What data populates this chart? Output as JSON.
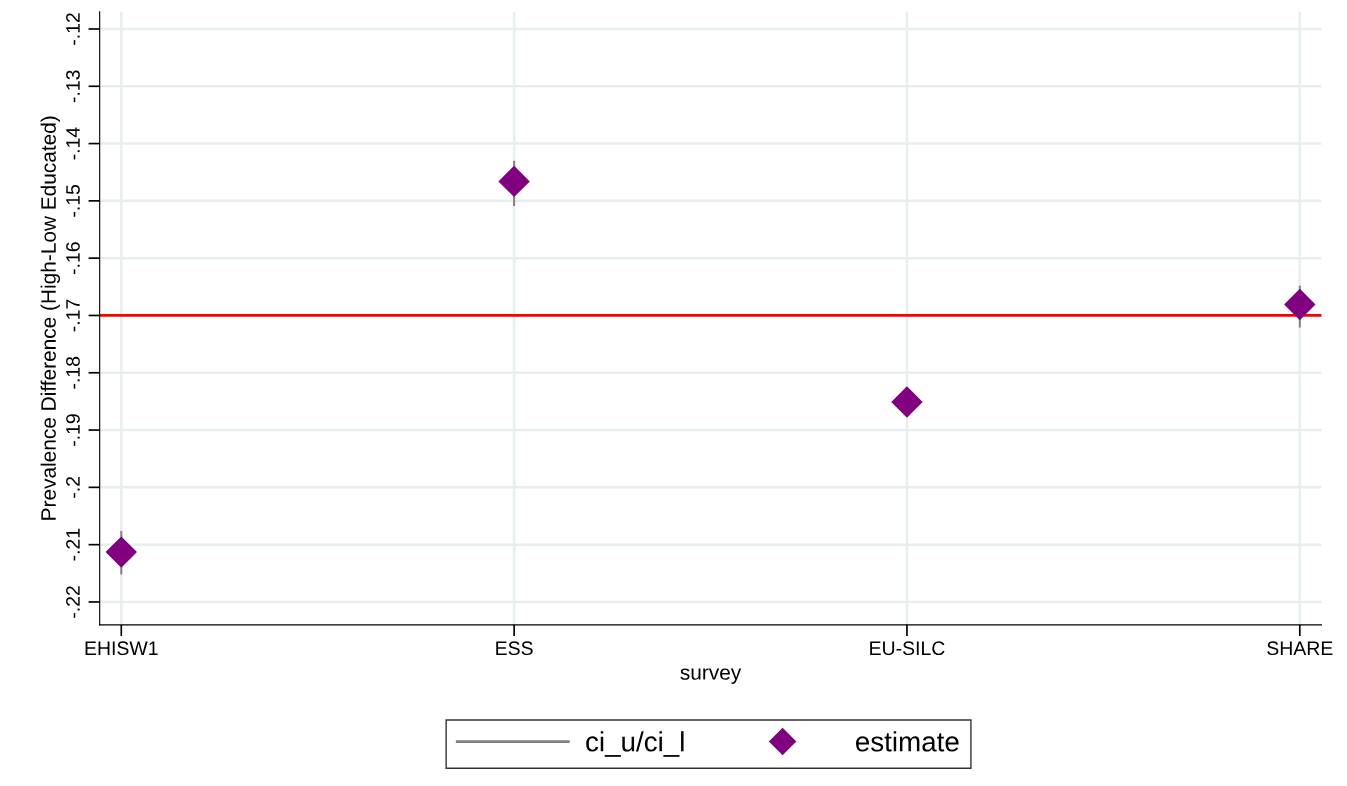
{
  "chart_data": {
    "type": "scatter",
    "xlabel": "survey",
    "ylabel": "Prevalence Difference (High-Low Educated)",
    "categories": [
      "EHISW1",
      "ESS",
      "EU-SILC",
      "SHARE"
    ],
    "series": [
      {
        "name": "ci_u/ci_l",
        "type": "bar",
        "color": "#808080",
        "base": [
          -0.2152,
          -0.1509,
          null,
          -0.1721
        ],
        "values": [
          0.0076,
          0.0079,
          null,
          0.0073
        ]
      },
      {
        "name": "estimate",
        "color": "#800080",
        "values": [
          -0.2113,
          -0.1466,
          -0.1851,
          -0.1681
        ]
      }
    ],
    "ylim": [
      -0.224,
      -0.117
    ],
    "yticks": [
      {
        "value": -0.22,
        "label": "-.22"
      },
      {
        "value": -0.21,
        "label": "-.21"
      },
      {
        "value": -0.2,
        "label": "-.2"
      },
      {
        "value": -0.19,
        "label": "-.19"
      },
      {
        "value": -0.18,
        "label": "-.18"
      },
      {
        "value": -0.17,
        "label": "-.17"
      },
      {
        "value": -0.16,
        "label": "-.16"
      },
      {
        "value": -0.15,
        "label": "-.15"
      },
      {
        "value": -0.14,
        "label": "-.14"
      },
      {
        "value": -0.13,
        "label": "-.13"
      },
      {
        "value": -0.12,
        "label": "-.12"
      }
    ],
    "ref_lines": [
      {
        "axis": "y",
        "value": -0.17,
        "color": "#ff0000"
      }
    ],
    "grid": true,
    "legend": "bottom",
    "marker": "diamond"
  }
}
